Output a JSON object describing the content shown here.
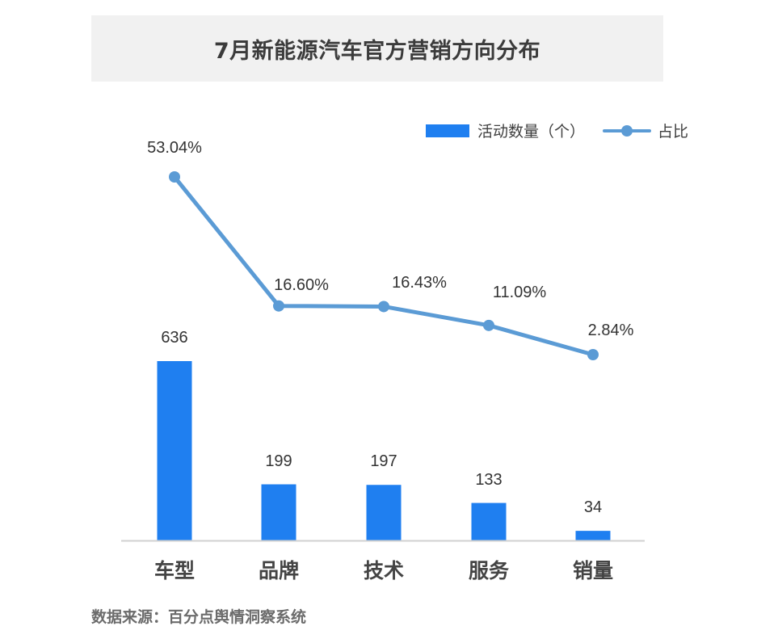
{
  "title": "7月新能源汽车官方营销方向分布",
  "legend": {
    "bar_label": "活动数量（个）",
    "line_label": "占比"
  },
  "source": "数据来源：百分点舆情洞察系统",
  "colors": {
    "bar": "#1f7ff0",
    "line": "#5b9bd5",
    "axis": "#d0d0d0",
    "title_bg": "#f1f1f1"
  },
  "chart_data": {
    "type": "bar+line",
    "title": "7月新能源汽车官方营销方向分布",
    "categories": [
      "车型",
      "品牌",
      "技术",
      "服务",
      "销量"
    ],
    "series": [
      {
        "name": "活动数量（个）",
        "type": "bar",
        "values": [
          636,
          199,
          197,
          133,
          34
        ],
        "labels": [
          "636",
          "199",
          "197",
          "133",
          "34"
        ]
      },
      {
        "name": "占比",
        "type": "line",
        "values": [
          53.04,
          16.6,
          16.43,
          11.09,
          2.84
        ],
        "labels": [
          "53.04%",
          "16.60%",
          "16.43%",
          "11.09%",
          "2.84%"
        ]
      }
    ],
    "xlabel": "",
    "ylabel": "",
    "grid": false,
    "legend_position": "top-right",
    "source": "数据来源：百分点舆情洞察系统"
  }
}
